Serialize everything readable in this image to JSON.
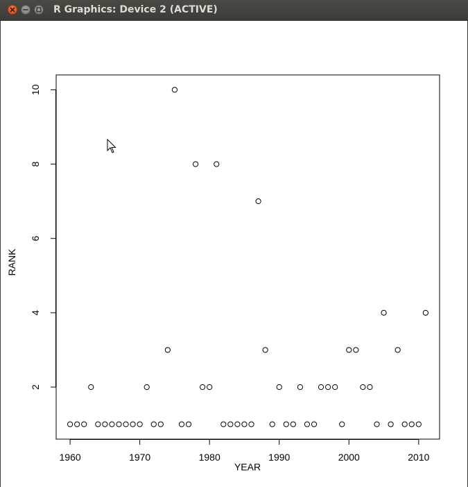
{
  "window": {
    "title": "R Graphics: Device 2 (ACTIVE)",
    "buttons": {
      "close": "close-icon",
      "minimize": "minimize-icon",
      "maximize": "maximize-icon"
    }
  },
  "chart_data": {
    "type": "scatter",
    "title": "",
    "xlabel": "YEAR",
    "ylabel": "RANK",
    "xlim": [
      1958,
      2013
    ],
    "ylim": [
      0.6,
      10.4
    ],
    "xticks": [
      1960,
      1970,
      1980,
      1990,
      2000,
      2010
    ],
    "yticks": [
      2,
      4,
      6,
      8,
      10
    ],
    "grid": false,
    "legend": "none",
    "marker": "open-circle",
    "x": [
      1960,
      1961,
      1962,
      1963,
      1964,
      1965,
      1966,
      1967,
      1968,
      1969,
      1970,
      1971,
      1972,
      1973,
      1974,
      1975,
      1976,
      1977,
      1978,
      1979,
      1980,
      1981,
      1982,
      1983,
      1984,
      1985,
      1986,
      1987,
      1988,
      1989,
      1990,
      1991,
      1992,
      1993,
      1994,
      1995,
      1996,
      1997,
      1998,
      1999,
      2000,
      2001,
      2002,
      2003,
      2004,
      2005,
      2006,
      2007,
      2008,
      2009,
      2010,
      2011
    ],
    "y": [
      1,
      1,
      1,
      2,
      1,
      1,
      1,
      1,
      1,
      1,
      1,
      2,
      1,
      1,
      3,
      10,
      1,
      1,
      8,
      2,
      2,
      8,
      1,
      1,
      1,
      1,
      1,
      7,
      3,
      1,
      2,
      1,
      1,
      2,
      1,
      1,
      2,
      2,
      2,
      1,
      3,
      3,
      2,
      2,
      1,
      4,
      1,
      3,
      1,
      1,
      1,
      4
    ]
  }
}
